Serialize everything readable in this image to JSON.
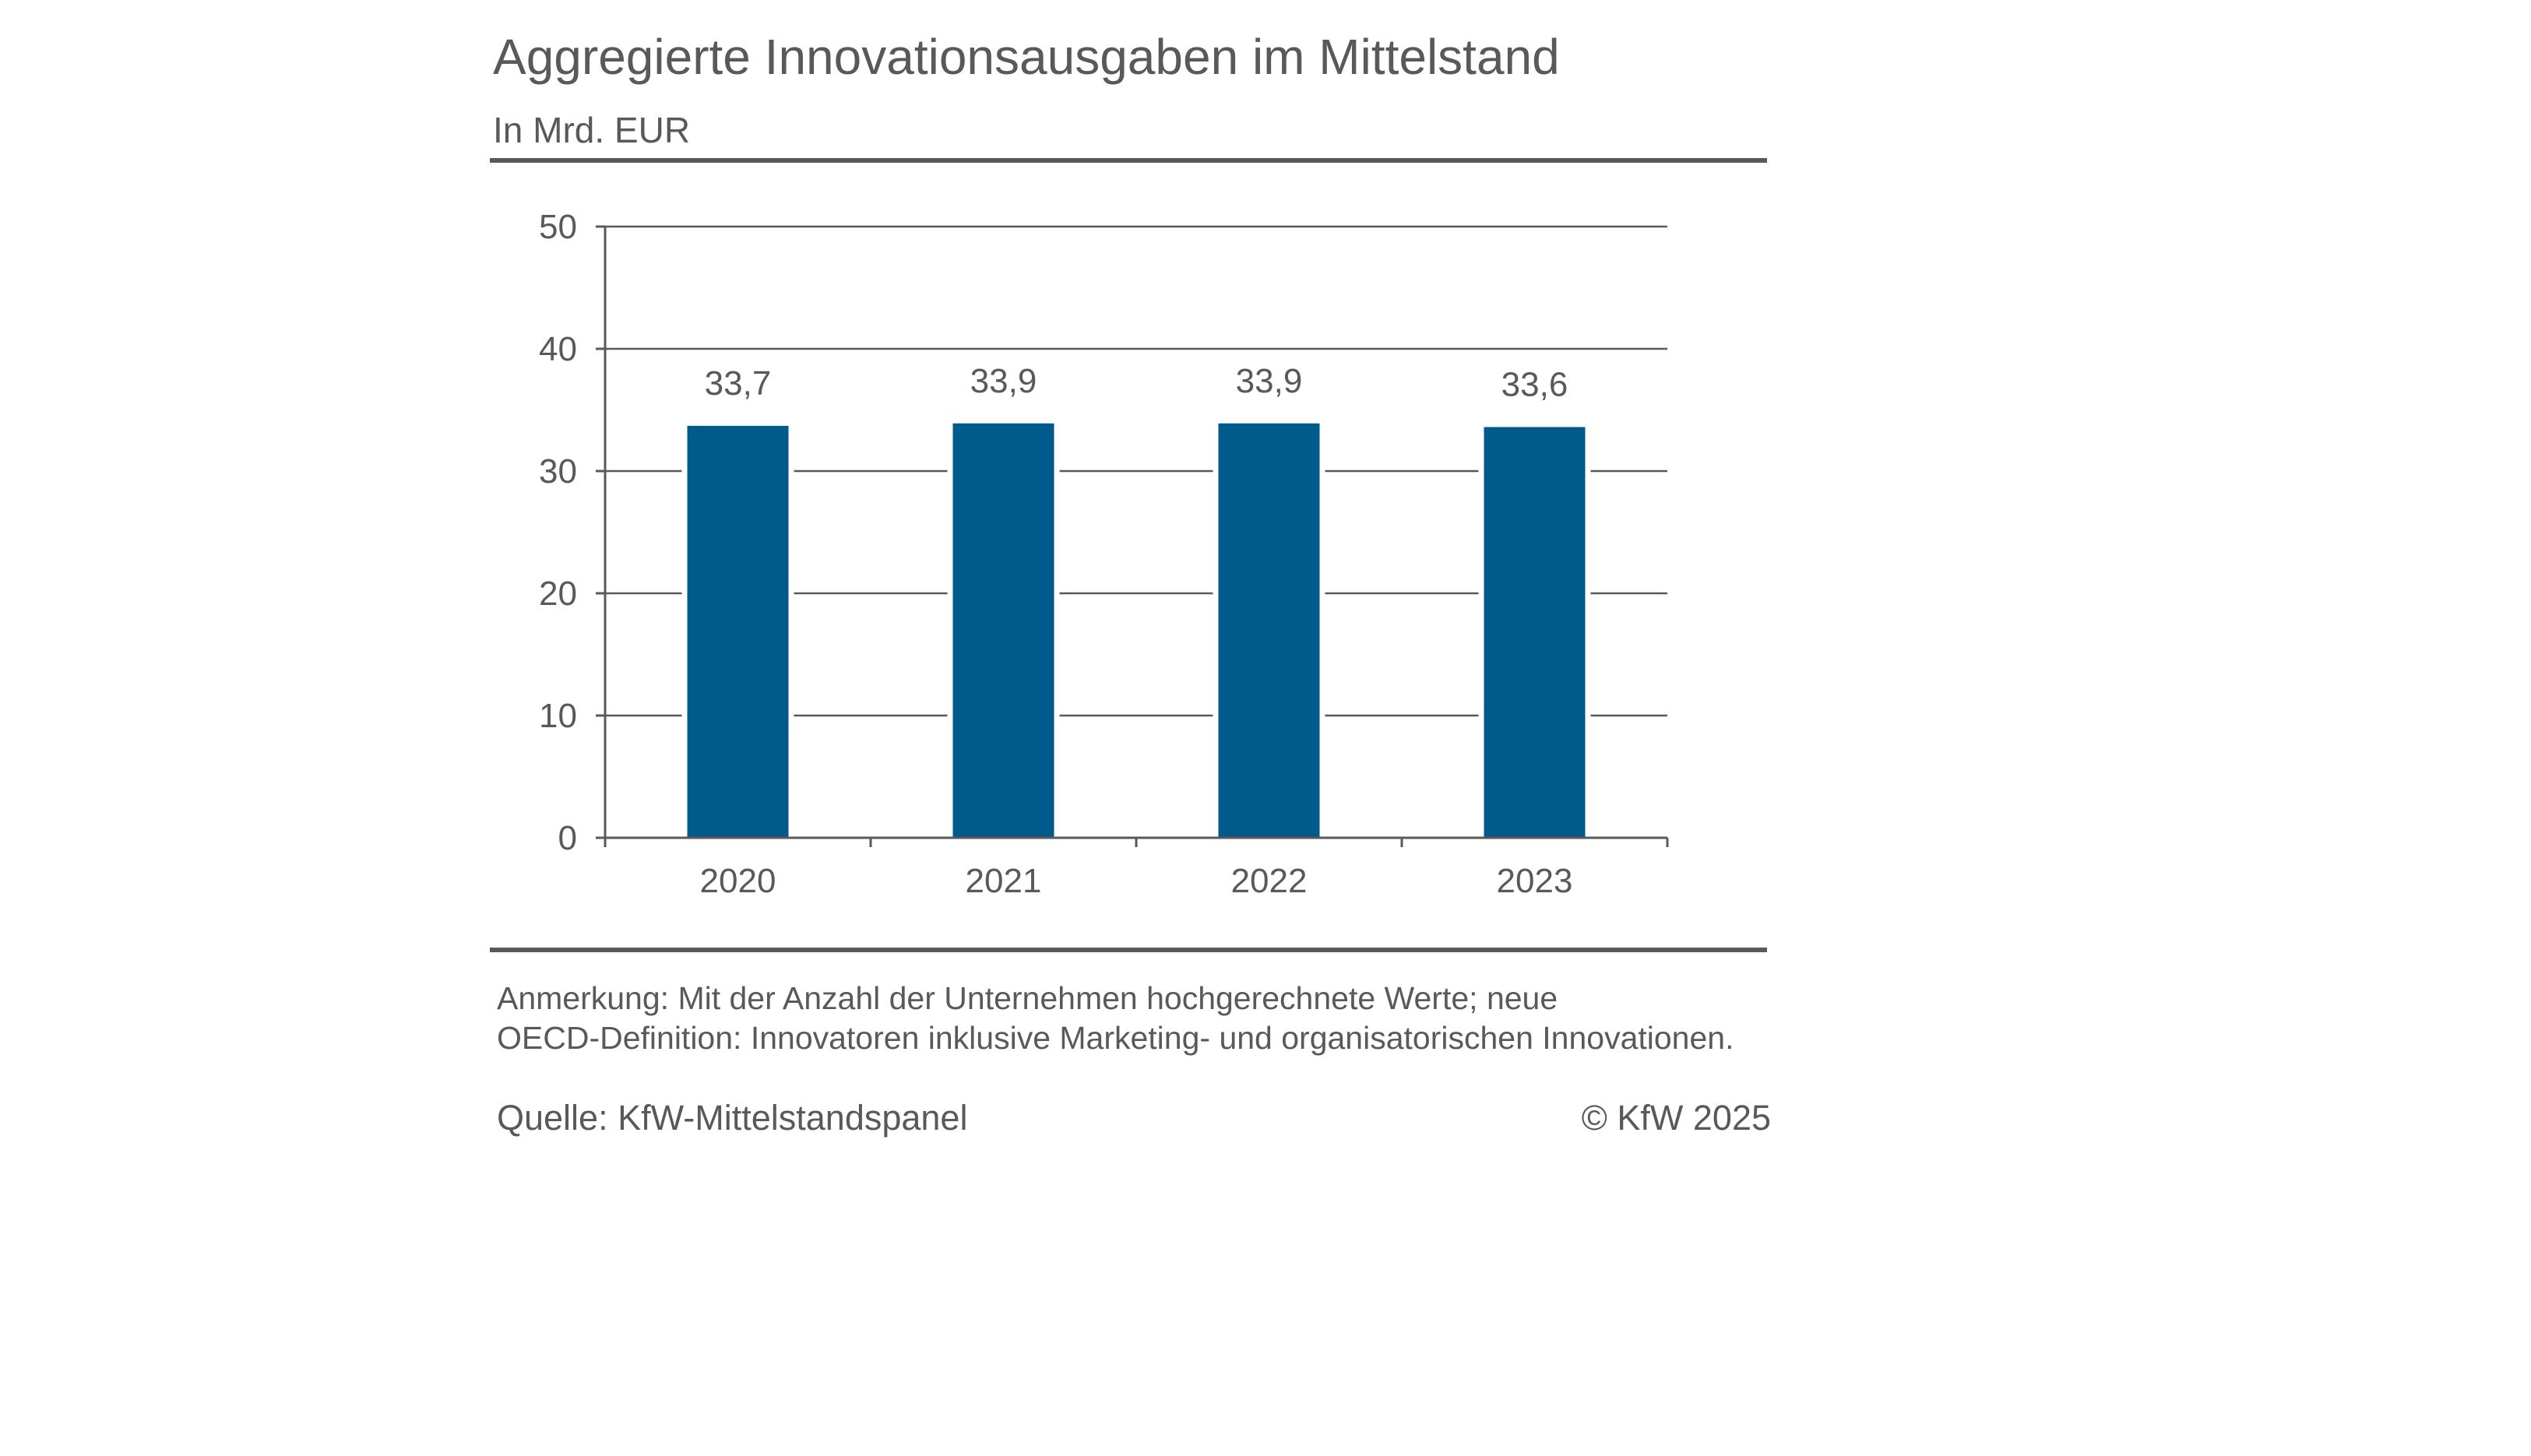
{
  "header": {
    "title": "Aggregierte Innovationsausgaben im Mittelstand",
    "subtitle": "In Mrd. EUR"
  },
  "chart_data": {
    "type": "bar",
    "categories": [
      "2020",
      "2021",
      "2022",
      "2023"
    ],
    "values": [
      33.7,
      33.9,
      33.9,
      33.6
    ],
    "value_labels": [
      "33,7",
      "33,9",
      "33,9",
      "33,6"
    ],
    "ylim": [
      0,
      50
    ],
    "yticks": [
      0,
      10,
      20,
      30,
      40,
      50
    ],
    "ytick_labels": [
      "0",
      "10",
      "20",
      "30",
      "40",
      "50"
    ],
    "grid": true,
    "legend": "none",
    "bar_color": "#005A8C",
    "axis_color": "#595959"
  },
  "footer": {
    "note_line1": "Anmerkung: Mit der Anzahl der Unternehmen hochgerechnete Werte; neue",
    "note_line2": "OECD-Definition: Innovatoren inklusive Marketing- und organisatorischen Innovationen.",
    "source": "Quelle: KfW-Mittelstandspanel",
    "copyright": "© KfW 2025"
  }
}
